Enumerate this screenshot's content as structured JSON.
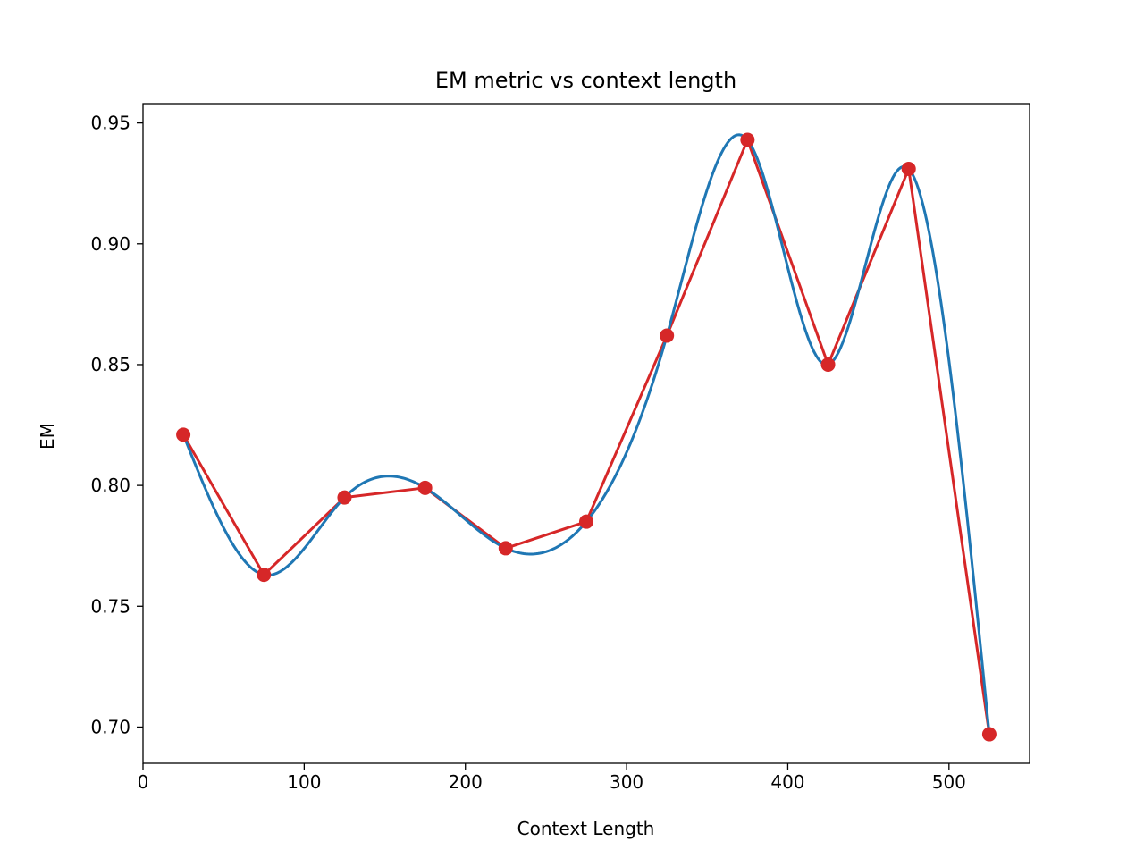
{
  "chart_data": {
    "type": "line",
    "title": "EM metric vs context length",
    "xlabel": "Context Length",
    "ylabel": "EM",
    "xlim": [
      0,
      550
    ],
    "ylim": [
      0.685,
      0.958
    ],
    "xticks": [
      0,
      100,
      200,
      300,
      400,
      500
    ],
    "xtick_labels": [
      "0",
      "100",
      "200",
      "300",
      "400",
      "500"
    ],
    "yticks": [
      0.7,
      0.75,
      0.8,
      0.85,
      0.9,
      0.95
    ],
    "ytick_labels": [
      "0.70",
      "0.75",
      "0.80",
      "0.85",
      "0.90",
      "0.95"
    ],
    "grid": false,
    "legend": "none",
    "x": [
      25,
      75,
      125,
      175,
      225,
      275,
      325,
      375,
      425,
      475,
      525
    ],
    "series": [
      {
        "style": "line+markers",
        "color": "#d62728",
        "values": [
          0.821,
          0.763,
          0.795,
          0.799,
          0.774,
          0.785,
          0.862,
          0.943,
          0.85,
          0.931,
          0.697
        ]
      },
      {
        "style": "smooth-line",
        "color": "#1f77b4",
        "values": [
          0.821,
          0.763,
          0.795,
          0.799,
          0.774,
          0.785,
          0.862,
          0.943,
          0.85,
          0.931,
          0.697
        ]
      }
    ]
  }
}
